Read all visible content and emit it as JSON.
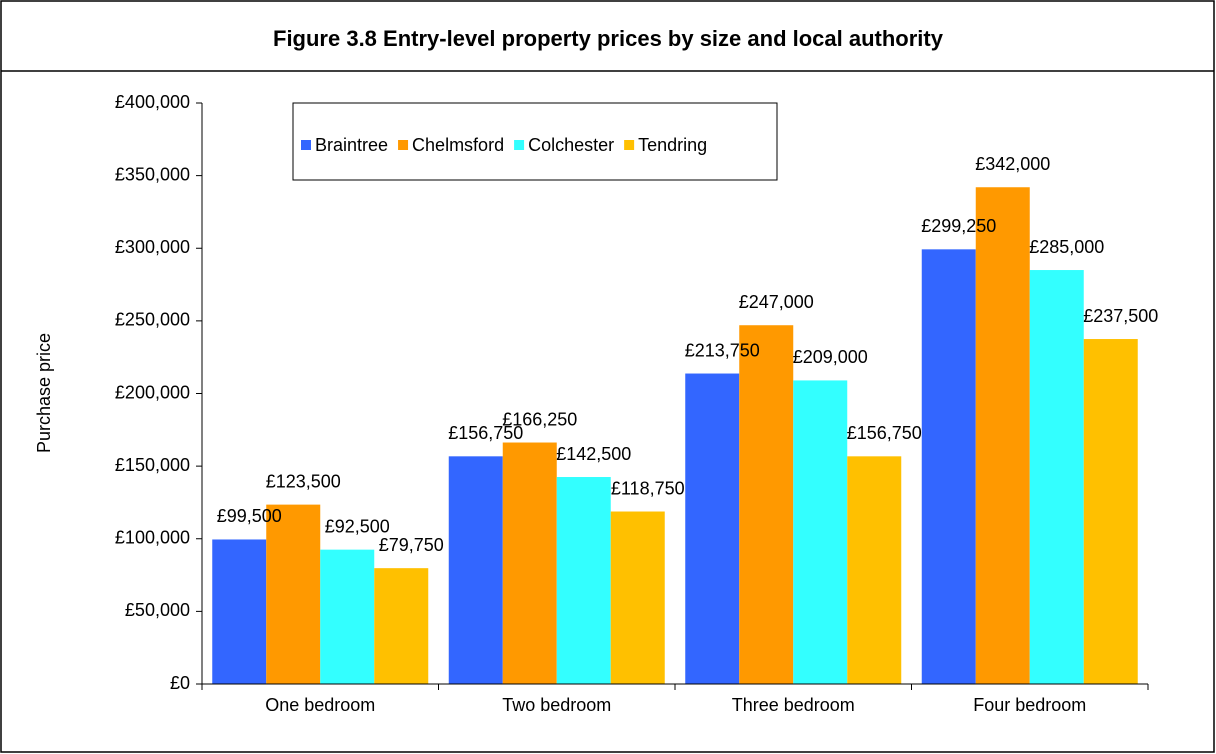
{
  "chart_data": {
    "type": "bar",
    "title": "Figure 3.8 Entry-level property prices by size and local authority",
    "y_label": "Purchase price",
    "categories": [
      "One bedroom",
      "Two bedroom",
      "Three bedroom",
      "Four bedroom"
    ],
    "series": [
      {
        "name": "Braintree",
        "color": "#3366ff",
        "values": [
          99500,
          156750,
          213750,
          299250
        ],
        "value_labels": [
          "£99,500",
          "£156,750",
          "£213,750",
          "£299,250"
        ]
      },
      {
        "name": "Chelmsford",
        "color": "#ff9900",
        "values": [
          123500,
          166250,
          247000,
          342000
        ],
        "value_labels": [
          "£123,500",
          "£166,250",
          "£247,000",
          "£342,000"
        ]
      },
      {
        "name": "Colchester",
        "color": "#33ffff",
        "values": [
          92500,
          142500,
          209000,
          285000
        ],
        "value_labels": [
          "£92,500",
          "£142,500",
          "£209,000",
          "£285,000"
        ]
      },
      {
        "name": "Tendring",
        "color": "#ffc000",
        "values": [
          79750,
          118750,
          156750,
          237500
        ],
        "value_labels": [
          "£79,750",
          "£118,750",
          "£156,750",
          "£237,500"
        ]
      }
    ],
    "ylim": [
      0,
      400000
    ],
    "yticks": [
      {
        "value": 0,
        "label": "£0"
      },
      {
        "value": 50000,
        "label": "£50,000"
      },
      {
        "value": 100000,
        "label": "£100,000"
      },
      {
        "value": 150000,
        "label": "£150,000"
      },
      {
        "value": 200000,
        "label": "£200,000"
      },
      {
        "value": 250000,
        "label": "£250,000"
      },
      {
        "value": 300000,
        "label": "£300,000"
      },
      {
        "value": 350000,
        "label": "£350,000"
      },
      {
        "value": 400000,
        "label": "£400,000"
      }
    ],
    "grid": false,
    "legend_position": "top-left"
  }
}
